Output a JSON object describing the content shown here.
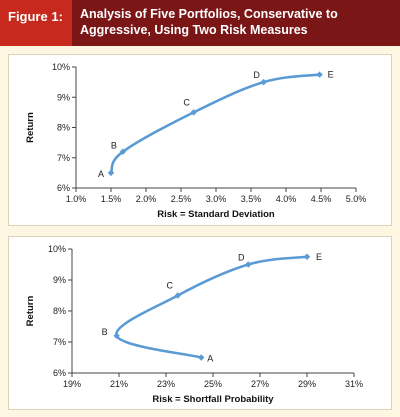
{
  "figure": {
    "label": "Figure 1:",
    "title": "Analysis of Five Portfolios, Conservative to Aggressive, Using Two Risk Measures"
  },
  "colors": {
    "series": "#5b9bd5",
    "header": "#7a1616",
    "label_bg": "#c72a1c"
  },
  "chart_data": [
    {
      "type": "line",
      "xlabel": "Risk = Standard Deviation",
      "ylabel": "Return",
      "xlim": [
        1.0,
        5.0
      ],
      "ylim": [
        6,
        10
      ],
      "x_ticks": [
        "1.0%",
        "1.5%",
        "2.0%",
        "2.5%",
        "3.0%",
        "3.5%",
        "4.0%",
        "4.5%",
        "5.0%"
      ],
      "y_ticks": [
        "6%",
        "7%",
        "8%",
        "9%",
        "10%"
      ],
      "grid": false,
      "points": [
        {
          "label": "A",
          "x": 1.5,
          "y": 6.5
        },
        {
          "label": "B",
          "x": 1.67,
          "y": 7.2
        },
        {
          "label": "C",
          "x": 2.68,
          "y": 8.5
        },
        {
          "label": "D",
          "x": 3.68,
          "y": 9.5
        },
        {
          "label": "E",
          "x": 4.48,
          "y": 9.75
        }
      ]
    },
    {
      "type": "line",
      "xlabel": "Risk = Shortfall Probability",
      "ylabel": "Return",
      "xlim": [
        19,
        31
      ],
      "ylim": [
        6,
        10
      ],
      "x_ticks": [
        "19%",
        "21%",
        "23%",
        "25%",
        "27%",
        "29%",
        "31%"
      ],
      "y_ticks": [
        "6%",
        "7%",
        "8%",
        "9%",
        "10%"
      ],
      "grid": false,
      "points": [
        {
          "label": "A",
          "x": 24.5,
          "y": 6.5
        },
        {
          "label": "B",
          "x": 20.9,
          "y": 7.2
        },
        {
          "label": "C",
          "x": 23.5,
          "y": 8.5
        },
        {
          "label": "D",
          "x": 26.5,
          "y": 9.5
        },
        {
          "label": "E",
          "x": 29.0,
          "y": 9.75
        }
      ]
    }
  ]
}
